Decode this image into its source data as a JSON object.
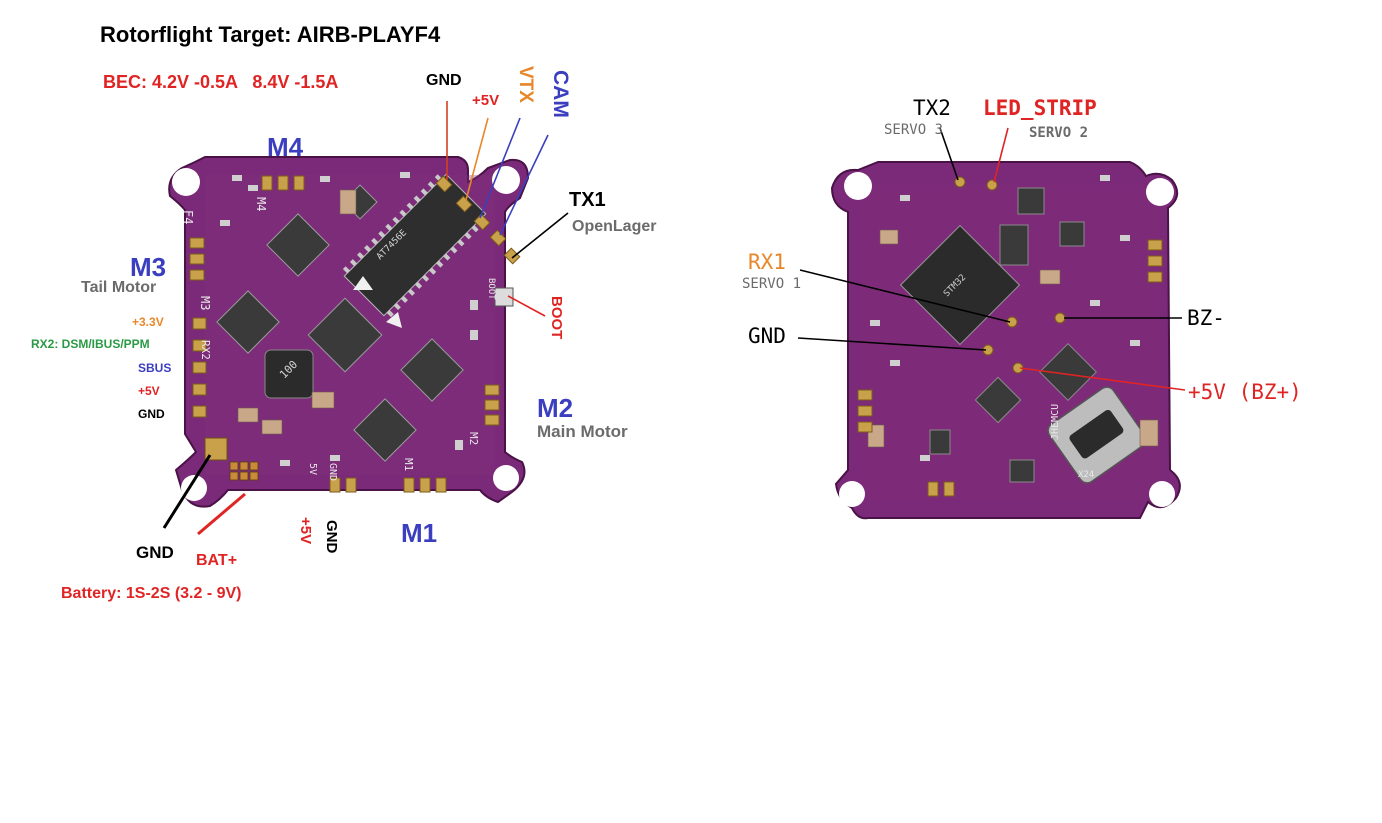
{
  "title": "Rotorflight Target: AIRB-PLAYF4",
  "bec": "BEC: 4.2V -0.5A   8.4V -1.5A",
  "battery": "Battery: 1S-2S (3.2 - 9V)",
  "left_board": {
    "motors": {
      "m1": "M1",
      "m2": "M2",
      "m2_desc": "Main Motor",
      "m3": "M3",
      "m3_desc": "Tail Motor",
      "m4": "M4"
    },
    "top_pads": {
      "gnd": "GND",
      "plus5v": "+5V",
      "vtx": "VTX",
      "cam": "CAM"
    },
    "tx1": "TX1",
    "tx1_desc": "OpenLager",
    "boot": "BOOT",
    "side_pads": {
      "v33": "+3.3V",
      "rx2": "RX2: DSM/IBUS/PPM",
      "sbus": "SBUS",
      "plus5v": "+5V",
      "gnd": "GND"
    },
    "bottom": {
      "gnd": "GND",
      "bat": "BAT+",
      "plus5v": "+5V",
      "gnd2": "GND"
    },
    "silk": {
      "m4": "M4",
      "m3": "M3",
      "m2": "M2",
      "m1": "M1",
      "f4": "F4",
      "rx2": "RX2",
      "boot": "BOOT",
      "chip": "AT7456E",
      "inductor": "100",
      "v5": "5V",
      "gnd": "GND"
    }
  },
  "right_board": {
    "tx2": "TX2",
    "tx2_desc": "SERVO 3",
    "led": "LED_STRIP",
    "led_desc": "SERVO 2",
    "rx1": "RX1",
    "rx1_desc": "SERVO 1",
    "gnd": "GND",
    "bz_minus": "BZ-",
    "bz_plus": "+5V (BZ+)",
    "silk": {
      "mcu": "STM32",
      "label": "JHEMCU",
      "num": "X24"
    }
  },
  "colors": {
    "board": "#7a2a78",
    "board_dark": "#5a1a5a",
    "gold": "#c9a14a",
    "chip": "#3a3a3a",
    "blue_label": "#3b3fbf",
    "orange_label": "#e8872a",
    "red_label": "#e02424"
  }
}
